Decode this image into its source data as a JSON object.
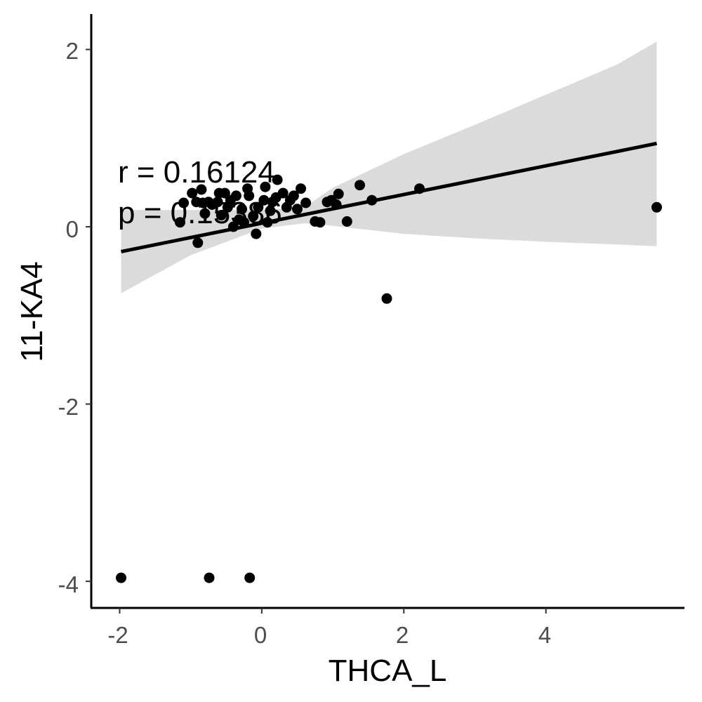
{
  "chart_data": {
    "type": "scatter",
    "xlabel": "THCA_L",
    "ylabel": "11-KA4",
    "xlim": [
      -2.4,
      5.95
    ],
    "ylim": [
      -4.3,
      2.4
    ],
    "x_ticks": [
      -2,
      0,
      2,
      4
    ],
    "y_ticks": [
      2,
      0,
      -2,
      -4
    ],
    "x_tick_labels": [
      "-2",
      "0",
      "2",
      "4"
    ],
    "y_tick_labels": [
      "2",
      "0",
      "-2",
      "-4"
    ],
    "grid": false,
    "legend": "none",
    "annotations": [
      "r = 0.16124",
      "p = 0.15386"
    ],
    "points": [
      [
        -1.98,
        -3.96
      ],
      [
        -0.74,
        -3.96
      ],
      [
        -0.17,
        -3.96
      ],
      [
        1.76,
        -0.81
      ],
      [
        5.56,
        0.22
      ],
      [
        -1.15,
        0.05
      ],
      [
        -1.1,
        0.27
      ],
      [
        -0.98,
        0.38
      ],
      [
        -0.92,
        0.28
      ],
      [
        -0.9,
        -0.18
      ],
      [
        -0.85,
        0.42
      ],
      [
        -0.83,
        0.27
      ],
      [
        -0.8,
        0.15
      ],
      [
        -0.75,
        0.28
      ],
      [
        -0.7,
        0.25
      ],
      [
        -0.62,
        0.28
      ],
      [
        -0.6,
        0.38
      ],
      [
        -0.57,
        0.13
      ],
      [
        -0.52,
        0.38
      ],
      [
        -0.48,
        0.22
      ],
      [
        -0.44,
        0.3
      ],
      [
        -0.4,
        0.0
      ],
      [
        -0.36,
        0.35
      ],
      [
        -0.32,
        0.08
      ],
      [
        -0.28,
        0.2
      ],
      [
        -0.25,
        0.05
      ],
      [
        -0.2,
        0.43
      ],
      [
        -0.18,
        0.35
      ],
      [
        -0.12,
        0.12
      ],
      [
        -0.08,
        -0.08
      ],
      [
        -0.05,
        0.22
      ],
      [
        0.03,
        0.3
      ],
      [
        0.05,
        0.45
      ],
      [
        0.08,
        0.05
      ],
      [
        0.12,
        0.18
      ],
      [
        0.15,
        0.28
      ],
      [
        0.2,
        0.33
      ],
      [
        0.22,
        0.53
      ],
      [
        0.3,
        0.38
      ],
      [
        0.35,
        0.22
      ],
      [
        0.4,
        0.3
      ],
      [
        0.45,
        0.35
      ],
      [
        0.5,
        0.2
      ],
      [
        0.55,
        0.43
      ],
      [
        0.62,
        0.27
      ],
      [
        0.75,
        0.06
      ],
      [
        0.82,
        0.05
      ],
      [
        0.92,
        0.28
      ],
      [
        0.98,
        0.3
      ],
      [
        1.05,
        0.25
      ],
      [
        1.08,
        0.37
      ],
      [
        1.2,
        0.06
      ],
      [
        1.38,
        0.47
      ],
      [
        1.55,
        0.3
      ],
      [
        2.22,
        0.43
      ]
    ],
    "fit_line": {
      "x": [
        -1.98,
        5.56
      ],
      "y": [
        -0.28,
        0.94
      ]
    },
    "confidence_band": {
      "x": [
        -1.98,
        -1.0,
        0.0,
        0.6,
        1.0,
        2.0,
        3.0,
        4.0,
        5.0,
        5.56
      ],
      "lower": [
        -0.75,
        -0.32,
        -0.02,
        0.04,
        0.01,
        -0.08,
        -0.13,
        -0.17,
        -0.2,
        -0.22
      ],
      "upper": [
        0.19,
        0.19,
        0.19,
        0.22,
        0.44,
        0.82,
        1.15,
        1.49,
        1.83,
        2.09
      ]
    },
    "colors": {
      "points": "#000000",
      "fit_line": "#000000",
      "band": "#d9d9d9",
      "axis": "#000000",
      "tick_text": "#4d4d4d"
    }
  }
}
